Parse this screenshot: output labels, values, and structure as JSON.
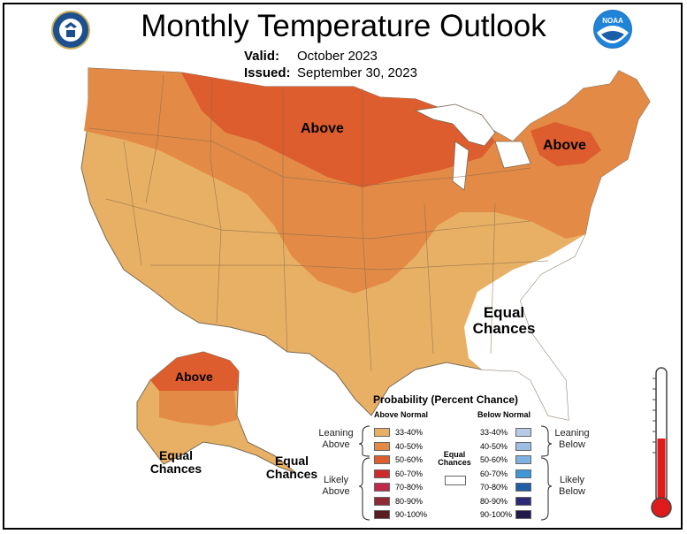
{
  "header": {
    "title": "Monthly Temperature Outlook",
    "valid_label": "Valid:",
    "valid_value": "October 2023",
    "issued_label": "Issued:",
    "issued_value": "September 30, 2023"
  },
  "logos": {
    "doc": "doc-seal-icon",
    "noaa_text": "NOAA"
  },
  "map_labels": {
    "above_north": "Above",
    "above_ne": "Above",
    "equal_se": "Equal Chances",
    "above_ak": "Above",
    "equal_ak": "Equal Chances",
    "equal_ak2": "Equal Chances"
  },
  "legend": {
    "title": "Probability (Percent Chance)",
    "above_header": "Above Normal",
    "below_header": "Below Normal",
    "equal_label": "Equal Chances",
    "leaning_above": "Leaning Above",
    "likely_above": "Likely Above",
    "leaning_below": "Leaning Below",
    "likely_below": "Likely Below",
    "above_items": [
      {
        "label": "33-40%",
        "color": "#e8b064"
      },
      {
        "label": "40-50%",
        "color": "#e38b46"
      },
      {
        "label": "50-60%",
        "color": "#dd5d2e"
      },
      {
        "label": "60-70%",
        "color": "#cf2a2a"
      },
      {
        "label": "70-80%",
        "color": "#c02a4a"
      },
      {
        "label": "80-90%",
        "color": "#8e2a35"
      },
      {
        "label": "90-100%",
        "color": "#5a1c20"
      }
    ],
    "below_items": [
      {
        "label": "33-40%",
        "color": "#b8cbe6"
      },
      {
        "label": "40-50%",
        "color": "#9dbde2"
      },
      {
        "label": "50-60%",
        "color": "#7fb1e3"
      },
      {
        "label": "60-70%",
        "color": "#3f97d6"
      },
      {
        "label": "70-80%",
        "color": "#1f5ea6"
      },
      {
        "label": "80-90%",
        "color": "#2c2a75"
      },
      {
        "label": "90-100%",
        "color": "#221a4a"
      }
    ]
  }
}
